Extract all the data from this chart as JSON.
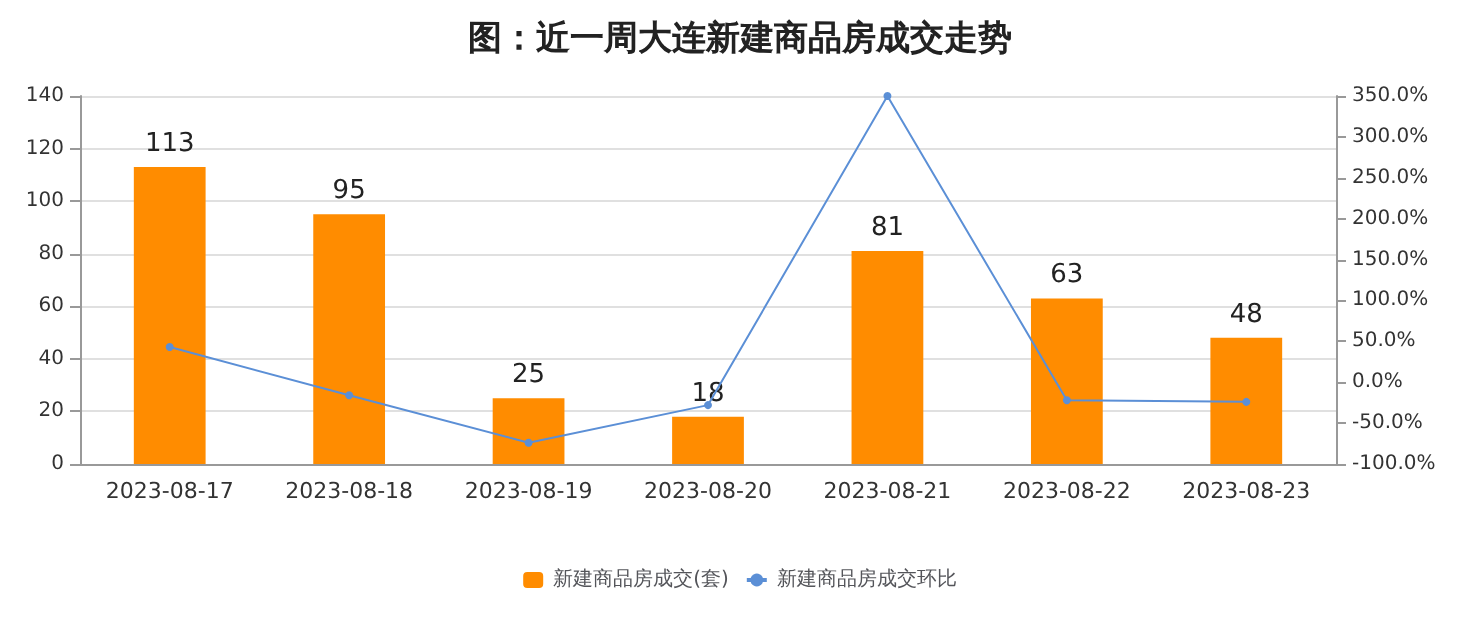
{
  "chart_data": {
    "type": "bar",
    "title": "图：近一周大连新建商品房成交走势",
    "categories": [
      "2023-08-17",
      "2023-08-18",
      "2023-08-19",
      "2023-08-20",
      "2023-08-21",
      "2023-08-22",
      "2023-08-23"
    ],
    "series": [
      {
        "name": "新建商品房成交(套)",
        "color": "#ff8c00",
        "values": [
          113,
          95,
          25,
          18,
          81,
          63,
          48
        ],
        "value_labels": [
          "113",
          "95",
          "25",
          "18",
          "81",
          "63",
          "48"
        ]
      },
      {
        "name": "新建商品房成交环比",
        "type": "line",
        "axis": "y2",
        "color": "#5b8fd6",
        "values": [
          43,
          -16,
          -74,
          -28,
          350,
          -22,
          -24
        ]
      }
    ],
    "ylim": [
      0,
      140
    ],
    "yticks": [
      0,
      20,
      40,
      60,
      80,
      100,
      120,
      140
    ],
    "y2lim": [
      -100,
      350
    ],
    "y2ticks": [
      {
        "value": -100,
        "label": "-100.0%"
      },
      {
        "value": -50,
        "label": "-50.0%"
      },
      {
        "value": 0,
        "label": "0.0%"
      },
      {
        "value": 50,
        "label": "50.0%"
      },
      {
        "value": 100,
        "label": "100.0%"
      },
      {
        "value": 150,
        "label": "150.0%"
      },
      {
        "value": 200,
        "label": "200.0%"
      },
      {
        "value": 250,
        "label": "250.0%"
      },
      {
        "value": 300,
        "label": "300.0%"
      },
      {
        "value": 350,
        "label": "350.0%"
      }
    ],
    "grid": "y",
    "legend": "bottom",
    "marker": "circle"
  }
}
